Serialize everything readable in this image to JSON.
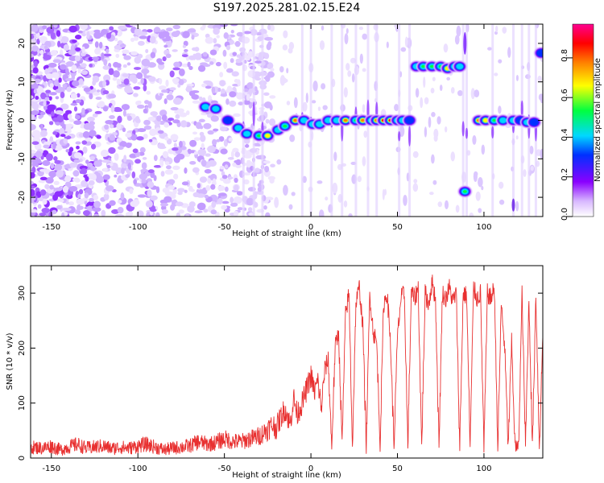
{
  "title": "S197.2025.281.02.15.E24",
  "chart_data": [
    {
      "type": "heatmap",
      "xlabel": "Height of straight line (km)",
      "ylabel": "Frequency (Hz)",
      "xlim": [
        -162,
        134
      ],
      "ylim": [
        -25,
        25
      ],
      "xticks": [
        -150,
        -100,
        -50,
        0,
        50,
        100
      ],
      "yticks": [
        -20,
        -10,
        0,
        10,
        20
      ],
      "colorbar": {
        "label": "Normalized spectral amplitude",
        "range": [
          0,
          0.97
        ],
        "ticks": [
          "0.0",
          "0.2",
          "0.4",
          "0.6",
          "0.8"
        ],
        "tick_values": [
          0,
          0.2,
          0.4,
          0.6,
          0.8
        ]
      },
      "ridge": [
        {
          "x": -61,
          "y": 3.5,
          "amp": 0.45
        },
        {
          "x": -55,
          "y": 3,
          "amp": 0.5
        },
        {
          "x": -48,
          "y": 0,
          "amp": 0.4
        },
        {
          "x": -42,
          "y": -2,
          "amp": 0.45
        },
        {
          "x": -37,
          "y": -3.5,
          "amp": 0.5
        },
        {
          "x": -30,
          "y": -4,
          "amp": 0.55
        },
        {
          "x": -25,
          "y": -4,
          "amp": 0.75
        },
        {
          "x": -19,
          "y": -2.5,
          "amp": 0.5
        },
        {
          "x": -15,
          "y": -1.5,
          "amp": 0.55
        },
        {
          "x": -9,
          "y": 0,
          "amp": 0.8
        },
        {
          "x": -4,
          "y": 0,
          "amp": 0.45
        },
        {
          "x": 1,
          "y": -1,
          "amp": 0.45
        },
        {
          "x": 5,
          "y": -1,
          "amp": 0.45
        },
        {
          "x": 10,
          "y": 0,
          "amp": 0.45
        },
        {
          "x": 15,
          "y": 0,
          "amp": 0.5
        },
        {
          "x": 20,
          "y": 0,
          "amp": 0.85
        },
        {
          "x": 26,
          "y": 0,
          "amp": 0.55
        },
        {
          "x": 30,
          "y": 0,
          "amp": 0.85
        },
        {
          "x": 35,
          "y": 0,
          "amp": 0.5
        },
        {
          "x": 38,
          "y": 0,
          "amp": 0.8
        },
        {
          "x": 42,
          "y": 0,
          "amp": 0.9
        },
        {
          "x": 46,
          "y": 0,
          "amp": 0.95
        },
        {
          "x": 50,
          "y": 0,
          "amp": 0.5
        },
        {
          "x": 53,
          "y": 0,
          "amp": 0.45
        },
        {
          "x": 57,
          "y": 0,
          "amp": 0.4
        },
        {
          "x": 61,
          "y": 14,
          "amp": 0.45
        },
        {
          "x": 65,
          "y": 14,
          "amp": 0.55
        },
        {
          "x": 70,
          "y": 14,
          "amp": 0.6
        },
        {
          "x": 75,
          "y": 14,
          "amp": 0.55
        },
        {
          "x": 79,
          "y": 13.5,
          "amp": 0.75
        },
        {
          "x": 83,
          "y": 14,
          "amp": 0.55
        },
        {
          "x": 86,
          "y": 14,
          "amp": 0.45
        },
        {
          "x": 89,
          "y": -18.5,
          "amp": 0.55
        },
        {
          "x": 97,
          "y": 0,
          "amp": 0.8
        },
        {
          "x": 101,
          "y": 0,
          "amp": 0.7
        },
        {
          "x": 106,
          "y": 0,
          "amp": 0.65
        },
        {
          "x": 111,
          "y": 0,
          "amp": 0.45
        },
        {
          "x": 117,
          "y": 0,
          "amp": 0.45
        },
        {
          "x": 121,
          "y": 0,
          "amp": 0.4
        },
        {
          "x": 125,
          "y": -0.5,
          "amp": 0.45
        },
        {
          "x": 129,
          "y": -0.5,
          "amp": 0.4
        },
        {
          "x": 133,
          "y": 17.5,
          "amp": 0.4
        }
      ]
    },
    {
      "type": "line",
      "xlabel": "Height of straight line (km)",
      "ylabel": "SNR (10 * v/v)",
      "xlim": [
        -162,
        134
      ],
      "ylim": [
        0,
        350
      ],
      "xticks": [
        -150,
        -100,
        -50,
        0,
        50,
        100
      ],
      "yticks": [
        0,
        100,
        200,
        300
      ],
      "series": [
        {
          "name": "SNR",
          "color": "#e83030",
          "x": [
            -162,
            -155,
            -150,
            -145,
            -140,
            -135,
            -130,
            -125,
            -120,
            -115,
            -110,
            -105,
            -100,
            -95,
            -90,
            -85,
            -80,
            -75,
            -70,
            -65,
            -60,
            -55,
            -50,
            -45,
            -40,
            -35,
            -30,
            -26,
            -22,
            -20,
            -18,
            -15,
            -12,
            -10,
            -8,
            -5,
            -2,
            0,
            2,
            4,
            6,
            8,
            10,
            12,
            14,
            16,
            18,
            20,
            22,
            24,
            26,
            28,
            30,
            32,
            34,
            36,
            38,
            40,
            42,
            44,
            46,
            48,
            50,
            52,
            54,
            56,
            58,
            60,
            62,
            64,
            66,
            68,
            70,
            72,
            74,
            76,
            78,
            80,
            82,
            84,
            86,
            88,
            90,
            92,
            94,
            96,
            98,
            100,
            102,
            104,
            106,
            108,
            110,
            112,
            114,
            116,
            118,
            120,
            122,
            124,
            126,
            128,
            130,
            132,
            134
          ],
          "y": [
            20,
            18,
            22,
            15,
            20,
            25,
            18,
            20,
            22,
            17,
            20,
            18,
            22,
            25,
            20,
            15,
            18,
            20,
            22,
            30,
            25,
            28,
            35,
            30,
            30,
            35,
            40,
            50,
            60,
            55,
            70,
            90,
            60,
            110,
            80,
            100,
            130,
            150,
            120,
            140,
            90,
            160,
            180,
            20,
            200,
            230,
            25,
            260,
            300,
            20,
            280,
            310,
            240,
            20,
            300,
            230,
            210,
            25,
            280,
            300,
            210,
            20,
            220,
            290,
            300,
            20,
            300,
            290,
            310,
            20,
            300,
            280,
            320,
            290,
            20,
            300,
            290,
            310,
            285,
            300,
            20,
            300,
            295,
            20,
            310,
            290,
            300,
            15,
            300,
            290,
            310,
            20,
            280,
            200,
            20,
            210,
            20,
            20,
            300,
            20,
            290,
            20,
            300,
            20,
            220
          ]
        }
      ]
    }
  ]
}
